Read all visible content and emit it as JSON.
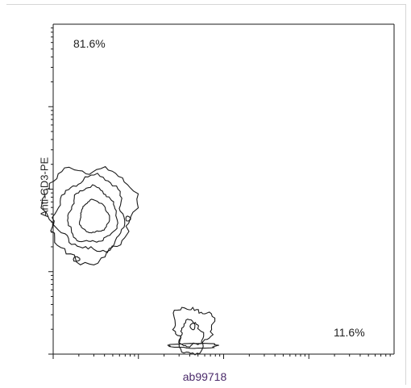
{
  "chart_data": {
    "type": "contour",
    "title": "",
    "xlabel": "ab99718",
    "ylabel": "Anti-CD3-PE",
    "x_scale": "log",
    "y_scale": "log",
    "xlim": [
      1,
      10000
    ],
    "ylim": [
      1,
      10000
    ],
    "grid": false,
    "quadrant_labels": {
      "upper_left": "81.6%",
      "lower_right": "11.6%"
    },
    "populations": [
      {
        "name": "",
        "center_decades": [
          0.5,
          1.7
        ],
        "contour_levels": 4
      },
      {
        "name": "",
        "center_decades": [
          1.6,
          0.2
        ],
        "contour_levels": 3
      }
    ],
    "colors": {
      "contour": "#1a1a1a",
      "axis": "#1a1a1a",
      "xlabel": "#4a2a6a"
    }
  }
}
